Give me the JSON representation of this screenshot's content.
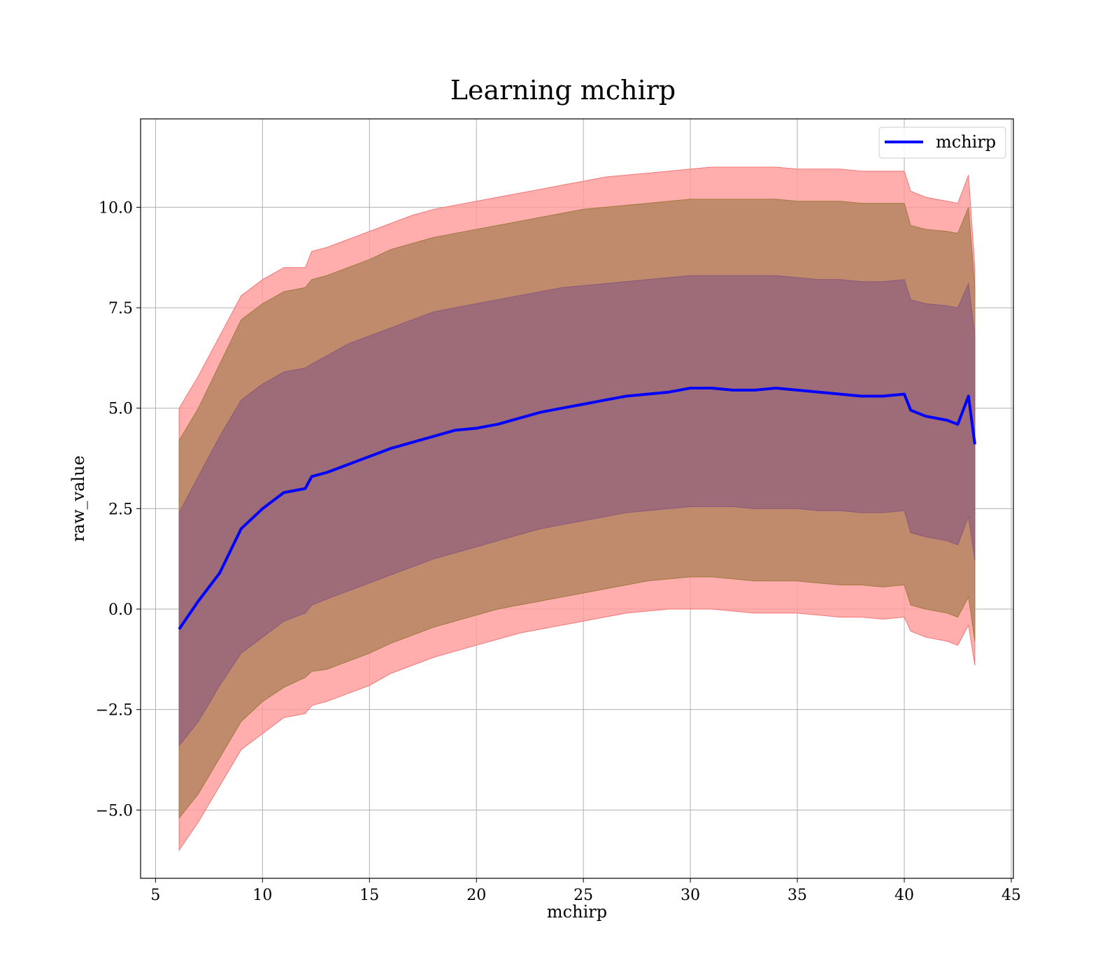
{
  "chart_data": {
    "type": "area",
    "title": "Learning mchirp",
    "xlabel": "mchirp",
    "ylabel": "raw_value",
    "xlim": [
      4.3,
      45.1
    ],
    "ylim": [
      -6.7,
      12.2
    ],
    "xticks": [
      5,
      10,
      15,
      20,
      25,
      30,
      35,
      40,
      45
    ],
    "xtick_labels": [
      "5",
      "10",
      "15",
      "20",
      "25",
      "30",
      "35",
      "40",
      "45"
    ],
    "yticks": [
      -5.0,
      -2.5,
      0.0,
      2.5,
      5.0,
      7.5,
      10.0
    ],
    "ytick_labels": [
      "−5.0",
      "−2.5",
      "0.0",
      "2.5",
      "5.0",
      "7.5",
      "10.0"
    ],
    "grid": true,
    "legend": {
      "position": "top-right",
      "entries": [
        "mchirp"
      ]
    },
    "colors": {
      "line": "#0000ff",
      "band_outer": "#ff9999",
      "band_middle": "#c08a6c",
      "band_inner": "#9e6b78"
    },
    "x": [
      6.1,
      7,
      8,
      9,
      10,
      11,
      12,
      12.3,
      13,
      14,
      15,
      16,
      17,
      18,
      19,
      20,
      21,
      22,
      23,
      24,
      25,
      26,
      27,
      28,
      29,
      30,
      31,
      32,
      33,
      34,
      35,
      36,
      37,
      38,
      39,
      40,
      40.3,
      41,
      42,
      42.5,
      43,
      43.3
    ],
    "series": [
      {
        "name": "mchirp",
        "values": [
          -0.5,
          0.2,
          0.9,
          2.0,
          2.5,
          2.9,
          3.0,
          3.3,
          3.4,
          3.6,
          3.8,
          4.0,
          4.15,
          4.3,
          4.45,
          4.5,
          4.6,
          4.75,
          4.9,
          5.0,
          5.1,
          5.2,
          5.3,
          5.35,
          5.4,
          5.5,
          5.5,
          5.45,
          5.45,
          5.5,
          5.45,
          5.4,
          5.35,
          5.3,
          5.3,
          5.35,
          4.95,
          4.8,
          4.7,
          4.6,
          5.3,
          4.1
        ]
      }
    ],
    "bands": [
      {
        "upper": [
          5.0,
          5.8,
          6.8,
          7.8,
          8.2,
          8.5,
          8.5,
          8.9,
          9.0,
          9.2,
          9.4,
          9.6,
          9.8,
          9.95,
          10.05,
          10.15,
          10.25,
          10.35,
          10.45,
          10.55,
          10.65,
          10.75,
          10.8,
          10.85,
          10.9,
          10.95,
          11.0,
          11.0,
          11.0,
          11.0,
          10.95,
          10.95,
          10.95,
          10.9,
          10.9,
          10.9,
          10.4,
          10.25,
          10.15,
          10.1,
          10.8,
          8.5
        ],
        "lower": [
          -6.0,
          -5.3,
          -4.4,
          -3.5,
          -3.1,
          -2.7,
          -2.6,
          -2.4,
          -2.3,
          -2.1,
          -1.9,
          -1.6,
          -1.4,
          -1.2,
          -1.05,
          -0.9,
          -0.75,
          -0.6,
          -0.5,
          -0.4,
          -0.3,
          -0.2,
          -0.1,
          -0.05,
          0.0,
          0.0,
          0.0,
          -0.05,
          -0.1,
          -0.1,
          -0.1,
          -0.15,
          -0.2,
          -0.2,
          -0.25,
          -0.2,
          -0.55,
          -0.7,
          -0.8,
          -0.9,
          -0.4,
          -1.4
        ]
      },
      {
        "upper": [
          4.2,
          5.0,
          6.1,
          7.2,
          7.6,
          7.9,
          8.0,
          8.2,
          8.3,
          8.5,
          8.7,
          8.95,
          9.1,
          9.25,
          9.35,
          9.45,
          9.55,
          9.65,
          9.75,
          9.85,
          9.95,
          10.0,
          10.05,
          10.1,
          10.15,
          10.2,
          10.2,
          10.2,
          10.2,
          10.2,
          10.15,
          10.15,
          10.15,
          10.1,
          10.1,
          10.1,
          9.55,
          9.45,
          9.4,
          9.35,
          10.0,
          8.0
        ],
        "lower": [
          -5.2,
          -4.6,
          -3.7,
          -2.8,
          -2.3,
          -1.95,
          -1.7,
          -1.55,
          -1.5,
          -1.3,
          -1.1,
          -0.85,
          -0.65,
          -0.45,
          -0.3,
          -0.15,
          0.0,
          0.1,
          0.2,
          0.3,
          0.4,
          0.5,
          0.6,
          0.7,
          0.75,
          0.8,
          0.8,
          0.75,
          0.7,
          0.7,
          0.7,
          0.65,
          0.6,
          0.6,
          0.55,
          0.6,
          0.1,
          0.0,
          -0.1,
          -0.2,
          0.3,
          -0.8
        ]
      },
      {
        "upper": [
          2.4,
          3.3,
          4.3,
          5.2,
          5.6,
          5.9,
          6.0,
          6.1,
          6.3,
          6.6,
          6.8,
          7.0,
          7.2,
          7.4,
          7.5,
          7.6,
          7.7,
          7.8,
          7.9,
          8.0,
          8.05,
          8.1,
          8.15,
          8.2,
          8.25,
          8.3,
          8.3,
          8.3,
          8.3,
          8.3,
          8.25,
          8.2,
          8.2,
          8.15,
          8.15,
          8.2,
          7.7,
          7.6,
          7.55,
          7.5,
          8.1,
          6.8
        ],
        "lower": [
          -3.4,
          -2.8,
          -1.9,
          -1.1,
          -0.7,
          -0.3,
          -0.1,
          0.1,
          0.25,
          0.45,
          0.65,
          0.85,
          1.05,
          1.25,
          1.4,
          1.55,
          1.7,
          1.85,
          2.0,
          2.1,
          2.2,
          2.3,
          2.4,
          2.45,
          2.5,
          2.55,
          2.55,
          2.55,
          2.5,
          2.5,
          2.5,
          2.45,
          2.45,
          2.4,
          2.4,
          2.45,
          1.9,
          1.8,
          1.7,
          1.6,
          2.3,
          1.2
        ]
      }
    ]
  }
}
